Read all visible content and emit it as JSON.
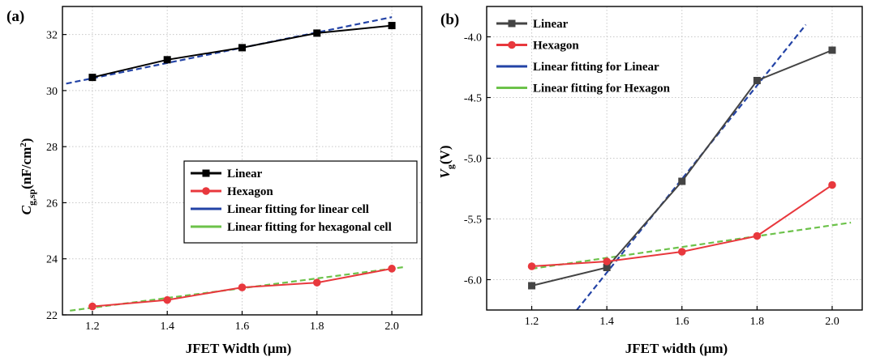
{
  "chart_data": [
    {
      "panel_label": "(a)",
      "type": "line",
      "xlabel": "JFET Width (μm)",
      "ylabel_main": "C",
      "ylabel_sub": "g,sp",
      "ylabel_unit": "(nF/cm",
      "ylabel_sup": "2",
      "ylabel_close": ")",
      "xlim": [
        1.12,
        2.08
      ],
      "ylim": [
        22,
        33
      ],
      "xticks": [
        1.2,
        1.4,
        1.6,
        1.8,
        2.0
      ],
      "yticks": [
        22,
        24,
        26,
        28,
        30,
        32
      ],
      "xtick_labels": [
        "1.2",
        "1.4",
        "1.6",
        "1.8",
        "2.0"
      ],
      "ytick_labels": [
        "22",
        "24",
        "26",
        "28",
        "30",
        "32"
      ],
      "grid": true,
      "legend_position": "lower-right",
      "series": [
        {
          "name": "Linear",
          "color": "#000000",
          "marker": "square",
          "style": "solid",
          "x": [
            1.2,
            1.4,
            1.6,
            1.8,
            2.0
          ],
          "y": [
            30.47,
            31.1,
            31.53,
            32.05,
            32.32
          ]
        },
        {
          "name": "Hexagon",
          "color": "#e8383d",
          "marker": "circle",
          "style": "solid",
          "x": [
            1.2,
            1.4,
            1.6,
            1.8,
            2.0
          ],
          "y": [
            22.3,
            22.53,
            22.98,
            23.15,
            23.65
          ]
        },
        {
          "name": "Linear fitting for linear cell",
          "color": "#2343a6",
          "marker": "none",
          "style": "dashed",
          "x": [
            1.13,
            2.0
          ],
          "y": [
            30.25,
            32.62
          ]
        },
        {
          "name": "Linear fitting for hexagonal cell",
          "color": "#6cc24a",
          "marker": "none",
          "style": "dashed",
          "x": [
            1.14,
            2.03
          ],
          "y": [
            22.15,
            23.7
          ]
        }
      ]
    },
    {
      "panel_label": "(b)",
      "type": "line",
      "xlabel": "JFET width (μm)",
      "ylabel_main": "V",
      "ylabel_sub": "g",
      "ylabel_unit": "(V)",
      "ylabel_sup": "",
      "ylabel_close": "",
      "xlim": [
        1.08,
        2.08
      ],
      "ylim": [
        -6.25,
        -3.75
      ],
      "xticks": [
        1.2,
        1.4,
        1.6,
        1.8,
        2.0
      ],
      "yticks": [
        -6.0,
        -5.5,
        -5.0,
        -4.5,
        -4.0
      ],
      "xtick_labels": [
        "1.2",
        "1.4",
        "1.6",
        "1.8",
        "2.0"
      ],
      "ytick_labels": [
        "-6.0",
        "-5.5",
        "-5.0",
        "-4.5",
        "-4.0"
      ],
      "grid": true,
      "legend_position": "top-left",
      "series": [
        {
          "name": "Linear",
          "color": "#444444",
          "marker": "square",
          "style": "solid",
          "x": [
            1.2,
            1.4,
            1.6,
            1.8,
            2.0
          ],
          "y": [
            -6.05,
            -5.9,
            -5.19,
            -4.36,
            -4.11
          ]
        },
        {
          "name": "Hexagon",
          "color": "#e8383d",
          "marker": "circle",
          "style": "solid",
          "x": [
            1.2,
            1.4,
            1.6,
            1.8,
            2.0
          ],
          "y": [
            -5.89,
            -5.85,
            -5.77,
            -5.64,
            -5.22
          ]
        },
        {
          "name": "Linear fitting for Linear",
          "color": "#2343a6",
          "marker": "none",
          "style": "dashed",
          "x": [
            1.32,
            1.93
          ],
          "y": [
            -6.25,
            -3.9
          ]
        },
        {
          "name": "Linear fitting for Hexagon",
          "color": "#6cc24a",
          "marker": "none",
          "style": "dashed",
          "x": [
            1.2,
            2.05
          ],
          "y": [
            -5.91,
            -5.53
          ]
        }
      ]
    }
  ]
}
